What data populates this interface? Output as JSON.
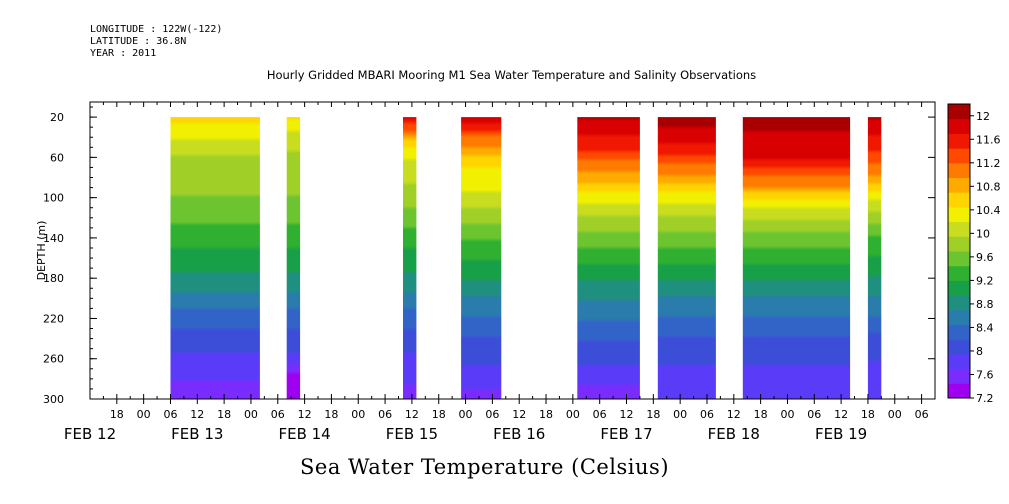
{
  "header": {
    "longitude": "LONGITUDE : 122W(-122)",
    "latitude": "LATITUDE : 36.8N",
    "year": "YEAR : 2011"
  },
  "chart_data": {
    "type": "heatmap",
    "title": "Hourly Gridded MBARI Mooring M1 Sea Water Temperature and Salinity Observations",
    "subtitle": "Sea Water Temperature (Celsius)",
    "ylabel": "DEPTH (m)",
    "xlabel": "",
    "y_ticks": [
      20,
      60,
      100,
      140,
      180,
      220,
      260,
      300
    ],
    "ylim": [
      300,
      5
    ],
    "x_range_hours_from_feb12_00": [
      12,
      201
    ],
    "hour_tick_labels": [
      "18",
      "00",
      "06",
      "12",
      "18",
      "00",
      "06",
      "12",
      "18",
      "00",
      "06",
      "12",
      "18",
      "00",
      "06",
      "12",
      "18",
      "00",
      "06",
      "12",
      "18",
      "00",
      "06",
      "12",
      "18",
      "00",
      "06",
      "12",
      "18",
      "00",
      "06",
      "12"
    ],
    "date_labels": [
      "FEB 12",
      "FEB 13",
      "FEB 14",
      "FEB 15",
      "FEB 16",
      "FEB 17",
      "FEB 18",
      "FEB 19"
    ],
    "colorbar_ticks": [
      "7.2",
      "7.6",
      "8",
      "8.4",
      "8.8",
      "9.2",
      "9.6",
      "10",
      "10.4",
      "10.8",
      "11.2",
      "11.6",
      "12"
    ],
    "colorbar_range": [
      7.2,
      12.2
    ],
    "colors": [
      "#a000f0",
      "#7a2cff",
      "#5a3cf8",
      "#3c4ed8",
      "#3264c8",
      "#2a7cac",
      "#1f9080",
      "#18a048",
      "#30b030",
      "#6cc430",
      "#a0d028",
      "#c8dc20",
      "#f0f000",
      "#ffd400",
      "#ffaa00",
      "#ff7a00",
      "#ff4800",
      "#f01800",
      "#d80000",
      "#a80000"
    ],
    "data_segments": [
      {
        "start": "Feb 13 06:00",
        "end": "Feb 14 02:00",
        "profile": [
          {
            "depth": 20,
            "temp": 10.6
          },
          {
            "depth": 40,
            "temp": 10.2
          },
          {
            "depth": 60,
            "temp": 9.9
          },
          {
            "depth": 100,
            "temp": 9.7
          },
          {
            "depth": 140,
            "temp": 9.3
          },
          {
            "depth": 180,
            "temp": 8.9
          },
          {
            "depth": 220,
            "temp": 8.3
          },
          {
            "depth": 260,
            "temp": 7.9
          },
          {
            "depth": 300,
            "temp": 7.5
          }
        ]
      },
      {
        "start": "Feb 14 08:00",
        "end": "Feb 14 11:00",
        "profile": [
          {
            "depth": 20,
            "temp": 10.5
          },
          {
            "depth": 40,
            "temp": 10.1
          },
          {
            "depth": 60,
            "temp": 9.9
          },
          {
            "depth": 100,
            "temp": 9.7
          },
          {
            "depth": 140,
            "temp": 9.3
          },
          {
            "depth": 180,
            "temp": 8.9
          },
          {
            "depth": 220,
            "temp": 8.3
          },
          {
            "depth": 260,
            "temp": 7.9
          },
          {
            "depth": 280,
            "temp": 7.3
          },
          {
            "depth": 300,
            "temp": 7.3
          }
        ]
      },
      {
        "start": "Feb 15 10:00",
        "end": "Feb 15 13:00",
        "profile": [
          {
            "depth": 20,
            "temp": 11.8
          },
          {
            "depth": 40,
            "temp": 10.8
          },
          {
            "depth": 60,
            "temp": 10.2
          },
          {
            "depth": 100,
            "temp": 9.8
          },
          {
            "depth": 140,
            "temp": 9.3
          },
          {
            "depth": 180,
            "temp": 8.9
          },
          {
            "depth": 220,
            "temp": 8.3
          },
          {
            "depth": 260,
            "temp": 7.9
          },
          {
            "depth": 300,
            "temp": 7.6
          }
        ]
      },
      {
        "start": "Feb 15 23:00",
        "end": "Feb 16 08:00",
        "profile": [
          {
            "depth": 20,
            "temp": 11.9
          },
          {
            "depth": 40,
            "temp": 11.2
          },
          {
            "depth": 60,
            "temp": 10.6
          },
          {
            "depth": 100,
            "temp": 10.1
          },
          {
            "depth": 140,
            "temp": 9.5
          },
          {
            "depth": 180,
            "temp": 9.0
          },
          {
            "depth": 220,
            "temp": 8.4
          },
          {
            "depth": 260,
            "temp": 8.0
          },
          {
            "depth": 300,
            "temp": 7.6
          }
        ]
      },
      {
        "start": "Feb 17 01:00",
        "end": "Feb 17 15:00",
        "profile": [
          {
            "depth": 20,
            "temp": 12.0
          },
          {
            "depth": 50,
            "temp": 11.5
          },
          {
            "depth": 80,
            "temp": 10.8
          },
          {
            "depth": 100,
            "temp": 10.3
          },
          {
            "depth": 140,
            "temp": 9.6
          },
          {
            "depth": 180,
            "temp": 9.0
          },
          {
            "depth": 220,
            "temp": 8.5
          },
          {
            "depth": 260,
            "temp": 8.0
          },
          {
            "depth": 300,
            "temp": 7.5
          }
        ]
      },
      {
        "start": "Feb 17 19:00",
        "end": "Feb 18 08:00",
        "profile": [
          {
            "depth": 20,
            "temp": 12.1
          },
          {
            "depth": 50,
            "temp": 11.6
          },
          {
            "depth": 80,
            "temp": 10.9
          },
          {
            "depth": 100,
            "temp": 10.3
          },
          {
            "depth": 140,
            "temp": 9.6
          },
          {
            "depth": 180,
            "temp": 9.0
          },
          {
            "depth": 220,
            "temp": 8.4
          },
          {
            "depth": 260,
            "temp": 8.0
          },
          {
            "depth": 300,
            "temp": 7.7
          }
        ]
      },
      {
        "start": "Feb 18 14:00",
        "end": "Feb 19 14:00",
        "profile": [
          {
            "depth": 20,
            "temp": 12.1
          },
          {
            "depth": 60,
            "temp": 11.7
          },
          {
            "depth": 90,
            "temp": 10.9
          },
          {
            "depth": 110,
            "temp": 10.2
          },
          {
            "depth": 140,
            "temp": 9.6
          },
          {
            "depth": 180,
            "temp": 9.0
          },
          {
            "depth": 220,
            "temp": 8.4
          },
          {
            "depth": 260,
            "temp": 8.0
          },
          {
            "depth": 300,
            "temp": 7.7
          }
        ]
      },
      {
        "start": "Feb 19 18:00",
        "end": "Feb 19 21:00",
        "profile": [
          {
            "depth": 20,
            "temp": 12.0
          },
          {
            "depth": 50,
            "temp": 11.5
          },
          {
            "depth": 80,
            "temp": 10.9
          },
          {
            "depth": 100,
            "temp": 10.2
          },
          {
            "depth": 140,
            "temp": 9.4
          },
          {
            "depth": 200,
            "temp": 8.7
          },
          {
            "depth": 240,
            "temp": 8.1
          },
          {
            "depth": 300,
            "temp": 7.7
          }
        ]
      }
    ]
  }
}
